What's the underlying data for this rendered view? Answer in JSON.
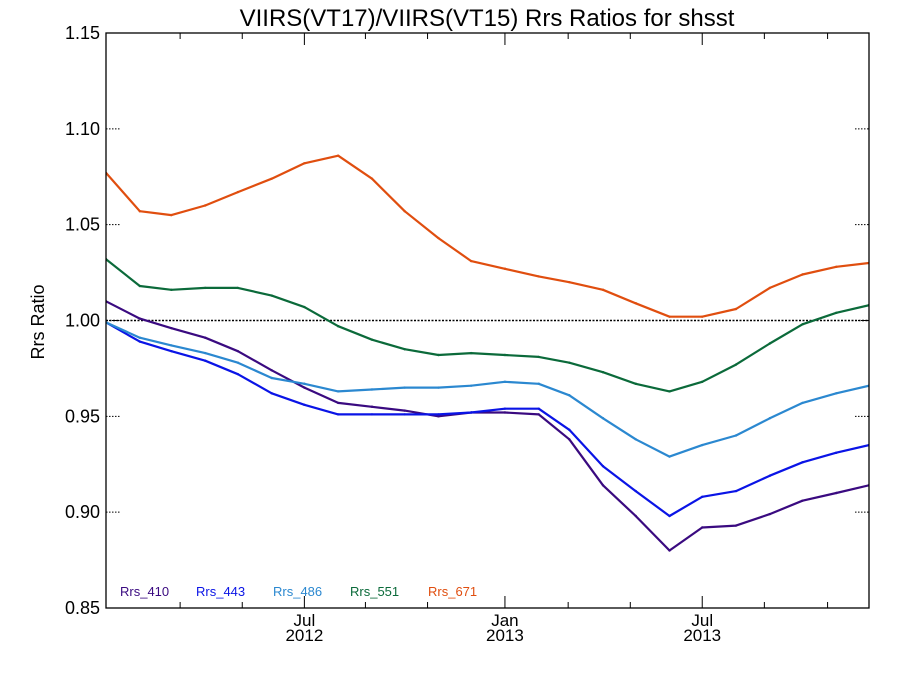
{
  "chart_data": {
    "type": "line",
    "title": "VIIRS(VT17)/VIIRS(VT15)  Rrs Ratios for shsst",
    "ylabel": "Rrs Ratio",
    "xlabel": "",
    "ylim": [
      0.85,
      1.15
    ],
    "yticks": [
      {
        "value": 0.85,
        "label": "0.85"
      },
      {
        "value": 0.9,
        "label": "0.90"
      },
      {
        "value": 0.95,
        "label": "0.95"
      },
      {
        "value": 1.0,
        "label": "1.00"
      },
      {
        "value": 1.05,
        "label": "1.05"
      },
      {
        "value": 1.1,
        "label": "1.10"
      },
      {
        "value": 1.15,
        "label": "1.15"
      }
    ],
    "xlim": [
      "2012-01-01",
      "2013-12-01"
    ],
    "x_major_ticks": [
      {
        "date": "2012-07-01",
        "label_top": "Jul",
        "label_bottom": "2012"
      },
      {
        "date": "2013-01-01",
        "label_top": "Jan",
        "label_bottom": "2013"
      },
      {
        "date": "2013-07-01",
        "label_top": "Jul",
        "label_bottom": "2013"
      }
    ],
    "x_minor_ticks": [
      "2012-03-09",
      "2012-05-05",
      "2012-08-26",
      "2012-10-22",
      "2013-02-28",
      "2013-04-26",
      "2013-08-27",
      "2013-10-24"
    ],
    "reference_line": {
      "value": 1.0,
      "style": "dotted",
      "color": "#000000"
    },
    "x": [
      "2012-01-01",
      "2012-02-01",
      "2012-03-01",
      "2012-04-01",
      "2012-05-01",
      "2012-06-01",
      "2012-07-01",
      "2012-08-01",
      "2012-09-01",
      "2012-10-01",
      "2012-11-01",
      "2012-12-01",
      "2013-01-01",
      "2013-02-01",
      "2013-03-01",
      "2013-04-01",
      "2013-05-01",
      "2013-06-01",
      "2013-07-01",
      "2013-08-01",
      "2013-09-01",
      "2013-10-01",
      "2013-11-01",
      "2013-12-01"
    ],
    "series": [
      {
        "name": "Rrs_410",
        "color": "#3a0a80",
        "values": [
          1.01,
          1.001,
          0.996,
          0.991,
          0.984,
          0.974,
          0.965,
          0.957,
          0.955,
          0.953,
          0.95,
          0.952,
          0.952,
          0.951,
          0.938,
          0.914,
          0.898,
          0.88,
          0.892,
          0.893,
          0.899,
          0.906,
          0.91,
          0.914
        ]
      },
      {
        "name": "Rrs_443",
        "color": "#0a14e6",
        "values": [
          0.999,
          0.989,
          0.984,
          0.979,
          0.972,
          0.962,
          0.956,
          0.951,
          0.951,
          0.951,
          0.951,
          0.952,
          0.954,
          0.954,
          0.943,
          0.924,
          0.911,
          0.898,
          0.908,
          0.911,
          0.919,
          0.926,
          0.931,
          0.935
        ]
      },
      {
        "name": "Rrs_486",
        "color": "#2b88d0",
        "values": [
          0.999,
          0.991,
          0.987,
          0.983,
          0.978,
          0.97,
          0.967,
          0.963,
          0.964,
          0.965,
          0.965,
          0.966,
          0.968,
          0.967,
          0.961,
          0.949,
          0.938,
          0.929,
          0.935,
          0.94,
          0.949,
          0.957,
          0.962,
          0.966
        ]
      },
      {
        "name": "Rrs_551",
        "color": "#0b6a3a",
        "values": [
          1.032,
          1.018,
          1.016,
          1.017,
          1.017,
          1.013,
          1.007,
          0.997,
          0.99,
          0.985,
          0.982,
          0.983,
          0.982,
          0.981,
          0.978,
          0.973,
          0.967,
          0.963,
          0.968,
          0.977,
          0.988,
          0.998,
          1.004,
          1.008
        ]
      },
      {
        "name": "Rrs_671",
        "color": "#e04e0f",
        "values": [
          1.077,
          1.057,
          1.055,
          1.06,
          1.067,
          1.074,
          1.082,
          1.086,
          1.074,
          1.057,
          1.043,
          1.031,
          1.027,
          1.023,
          1.02,
          1.016,
          1.009,
          1.002,
          1.002,
          1.006,
          1.017,
          1.024,
          1.028,
          1.03
        ]
      }
    ]
  }
}
